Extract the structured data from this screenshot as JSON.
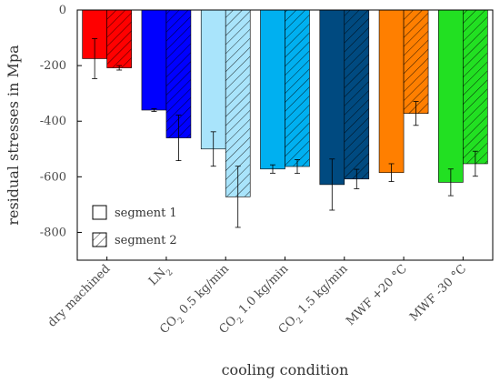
{
  "chart_data": {
    "type": "bar",
    "xlabel": "cooling condition",
    "ylabel": "residual stresses in Mpa",
    "ylim": [
      -900,
      0
    ],
    "yticks": [
      0,
      -200,
      -400,
      -600,
      -800
    ],
    "grid": false,
    "legend_position": "bottom-left",
    "categories": [
      {
        "pre": "dry machined",
        "sub": "",
        "post": "",
        "color": "#ff0000"
      },
      {
        "pre": "LN",
        "sub": "2",
        "post": "",
        "color": "#0000ff"
      },
      {
        "pre": "CO",
        "sub": "2",
        "post": " 0.5 kg/min",
        "color": "#a9e4fb"
      },
      {
        "pre": "CO",
        "sub": "2",
        "post": " 1.0 kg/min",
        "color": "#00b0f0"
      },
      {
        "pre": "CO",
        "sub": "2",
        "post": " 1.5 kg/min",
        "color": "#004a80"
      },
      {
        "pre": "MWF +20 °C",
        "sub": "",
        "post": "",
        "color": "#ff7f00"
      },
      {
        "pre": "MWF -30 °C",
        "sub": "",
        "post": "",
        "color": "#22e022"
      }
    ],
    "series": [
      {
        "name": "segment 1",
        "pattern": "solid",
        "values": [
          -175,
          -360,
          -500,
          -572,
          -628,
          -585,
          -620
        ],
        "errors": [
          72,
          5,
          62,
          15,
          92,
          32,
          48
        ]
      },
      {
        "name": "segment 2",
        "pattern": "hatched",
        "values": [
          -208,
          -460,
          -672,
          -563,
          -608,
          -372,
          -553
        ],
        "errors": [
          8,
          82,
          110,
          25,
          35,
          43,
          45
        ]
      }
    ]
  }
}
